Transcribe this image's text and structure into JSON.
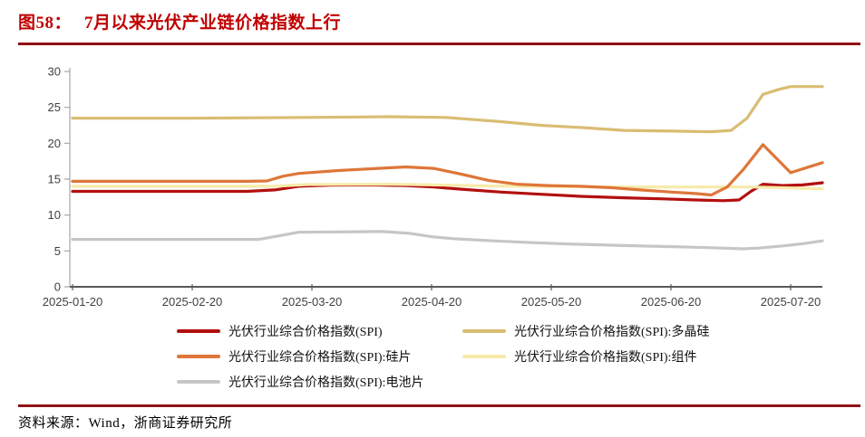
{
  "header": {
    "figure_label": "图58：",
    "title": "7月以来光伏产业链价格指数上行",
    "title_color": "#c00000",
    "rule_color": "#8e1016"
  },
  "footer": {
    "text": "资料来源：Wind，浙商证券研究所"
  },
  "chart_data": {
    "type": "line",
    "title": "7月以来光伏产业链价格指数上行",
    "xlabel": "",
    "ylabel": "",
    "ylim": [
      0,
      30
    ],
    "ytick_step": 5,
    "ytick_labels": [
      "0",
      "5",
      "10",
      "15",
      "20",
      "25",
      "30"
    ],
    "x_tick_labels": [
      "2025-01-20",
      "2025-02-20",
      "2025-03-20",
      "2025-04-20",
      "2025-05-20",
      "2025-06-20",
      "2025-07-20"
    ],
    "grid": false,
    "legend_position": "bottom",
    "x_axis_color": "#595959",
    "y_axis_color": "#a6a6a6",
    "tick_label_color": "#404040",
    "series": [
      {
        "key": "spi",
        "name": "光伏行业综合价格指数(SPI)",
        "color": "#b30f0f",
        "points": [
          [
            "2025-01-20",
            13.3
          ],
          [
            "2025-02-05",
            13.3
          ],
          [
            "2025-02-20",
            13.3
          ],
          [
            "2025-03-05",
            13.3
          ],
          [
            "2025-03-12",
            13.5
          ],
          [
            "2025-03-18",
            14.0
          ],
          [
            "2025-03-26",
            14.15
          ],
          [
            "2025-04-05",
            14.2
          ],
          [
            "2025-04-14",
            14.1
          ],
          [
            "2025-04-21",
            13.9
          ],
          [
            "2025-04-28",
            13.6
          ],
          [
            "2025-05-08",
            13.2
          ],
          [
            "2025-05-18",
            12.9
          ],
          [
            "2025-05-28",
            12.6
          ],
          [
            "2025-06-08",
            12.4
          ],
          [
            "2025-06-18",
            12.25
          ],
          [
            "2025-06-26",
            12.1
          ],
          [
            "2025-07-03",
            12.0
          ],
          [
            "2025-07-07",
            12.1
          ],
          [
            "2025-07-10",
            13.3
          ],
          [
            "2025-07-13",
            14.3
          ],
          [
            "2025-07-18",
            14.1
          ],
          [
            "2025-07-23",
            14.2
          ],
          [
            "2025-07-28",
            14.5
          ]
        ]
      },
      {
        "key": "wafer",
        "name": "光伏行业综合价格指数(SPI):硅片",
        "color": "#de7639",
        "points": [
          [
            "2025-01-20",
            14.7
          ],
          [
            "2025-02-05",
            14.7
          ],
          [
            "2025-02-20",
            14.7
          ],
          [
            "2025-03-05",
            14.7
          ],
          [
            "2025-03-10",
            14.75
          ],
          [
            "2025-03-14",
            15.4
          ],
          [
            "2025-03-18",
            15.8
          ],
          [
            "2025-03-28",
            16.2
          ],
          [
            "2025-04-07",
            16.5
          ],
          [
            "2025-04-14",
            16.7
          ],
          [
            "2025-04-21",
            16.5
          ],
          [
            "2025-04-28",
            15.7
          ],
          [
            "2025-05-05",
            14.8
          ],
          [
            "2025-05-12",
            14.3
          ],
          [
            "2025-05-20",
            14.1
          ],
          [
            "2025-05-28",
            14.0
          ],
          [
            "2025-06-05",
            13.8
          ],
          [
            "2025-06-12",
            13.5
          ],
          [
            "2025-06-20",
            13.2
          ],
          [
            "2025-06-26",
            13.0
          ],
          [
            "2025-06-30",
            12.8
          ],
          [
            "2025-07-04",
            13.9
          ],
          [
            "2025-07-08",
            16.3
          ],
          [
            "2025-07-13",
            19.8
          ],
          [
            "2025-07-20",
            15.9
          ],
          [
            "2025-07-24",
            16.6
          ],
          [
            "2025-07-28",
            17.3
          ]
        ]
      },
      {
        "key": "cell",
        "name": "光伏行业综合价格指数(SPI):电池片",
        "color": "#c6c6c6",
        "points": [
          [
            "2025-01-20",
            6.6
          ],
          [
            "2025-02-05",
            6.6
          ],
          [
            "2025-02-20",
            6.6
          ],
          [
            "2025-03-08",
            6.6
          ],
          [
            "2025-03-13",
            7.1
          ],
          [
            "2025-03-18",
            7.6
          ],
          [
            "2025-03-28",
            7.65
          ],
          [
            "2025-04-08",
            7.7
          ],
          [
            "2025-04-15",
            7.45
          ],
          [
            "2025-04-21",
            6.95
          ],
          [
            "2025-04-26",
            6.7
          ],
          [
            "2025-05-06",
            6.4
          ],
          [
            "2025-05-16",
            6.15
          ],
          [
            "2025-05-26",
            5.95
          ],
          [
            "2025-06-08",
            5.75
          ],
          [
            "2025-06-20",
            5.6
          ],
          [
            "2025-06-30",
            5.45
          ],
          [
            "2025-07-08",
            5.3
          ],
          [
            "2025-07-12",
            5.4
          ],
          [
            "2025-07-18",
            5.7
          ],
          [
            "2025-07-23",
            6.0
          ],
          [
            "2025-07-28",
            6.4
          ]
        ]
      },
      {
        "key": "polysilicon",
        "name": "光伏行业综合价格指数(SPI):多晶硅",
        "color": "#d9bd72",
        "points": [
          [
            "2025-01-20",
            23.5
          ],
          [
            "2025-02-20",
            23.5
          ],
          [
            "2025-03-20",
            23.6
          ],
          [
            "2025-04-10",
            23.7
          ],
          [
            "2025-04-24",
            23.6
          ],
          [
            "2025-05-08",
            23.0
          ],
          [
            "2025-05-18",
            22.5
          ],
          [
            "2025-05-28",
            22.2
          ],
          [
            "2025-06-08",
            21.8
          ],
          [
            "2025-06-20",
            21.7
          ],
          [
            "2025-06-30",
            21.6
          ],
          [
            "2025-07-05",
            21.8
          ],
          [
            "2025-07-09",
            23.5
          ],
          [
            "2025-07-13",
            26.8
          ],
          [
            "2025-07-17",
            27.5
          ],
          [
            "2025-07-20",
            27.9
          ],
          [
            "2025-07-28",
            27.9
          ]
        ]
      },
      {
        "key": "module",
        "name": "光伏行业综合价格指数(SPI):组件",
        "color": "#f7eaaa",
        "points": [
          [
            "2025-01-20",
            14.0
          ],
          [
            "2025-02-20",
            14.0
          ],
          [
            "2025-03-12",
            14.0
          ],
          [
            "2025-03-20",
            14.25
          ],
          [
            "2025-04-10",
            14.3
          ],
          [
            "2025-04-21",
            14.2
          ],
          [
            "2025-05-05",
            14.05
          ],
          [
            "2025-05-20",
            13.95
          ],
          [
            "2025-06-10",
            13.9
          ],
          [
            "2025-06-25",
            13.9
          ],
          [
            "2025-07-10",
            13.9
          ],
          [
            "2025-07-18",
            13.8
          ],
          [
            "2025-07-28",
            13.65
          ]
        ]
      }
    ]
  }
}
